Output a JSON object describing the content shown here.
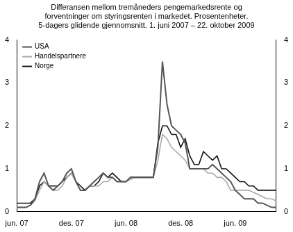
{
  "chart_data": {
    "type": "line",
    "title": [
      "Differansen mellom tremåneders pengemarkedsrente og",
      "forventninger om styringsrenten i markedet. Prosentenheter."
    ],
    "subtitle": "5-dagers glidende gjennomsnitt. 1. juni 2007 – 22. oktober 2009",
    "categories": [
      "jun. 07",
      null,
      null,
      null,
      null,
      null,
      null,
      null,
      null,
      null,
      null,
      null,
      "des. 07",
      null,
      null,
      null,
      null,
      null,
      null,
      null,
      null,
      null,
      null,
      null,
      "jun. 08",
      null,
      null,
      null,
      null,
      null,
      null,
      null,
      null,
      null,
      null,
      null,
      "des. 08",
      null,
      null,
      null,
      null,
      null,
      null,
      null,
      null,
      null,
      null,
      null,
      "jun. 09",
      null,
      null,
      null,
      null,
      null,
      null,
      null,
      null,
      null
    ],
    "series": [
      {
        "name": "USA",
        "color": "#555555",
        "values": [
          0.1,
          0.1,
          0.1,
          0.15,
          0.3,
          0.7,
          0.9,
          0.6,
          0.5,
          0.6,
          0.7,
          0.9,
          1.0,
          0.7,
          0.5,
          0.5,
          0.6,
          0.7,
          0.8,
          0.9,
          0.8,
          0.8,
          0.7,
          0.7,
          0.7,
          0.8,
          0.8,
          0.8,
          0.8,
          0.8,
          0.8,
          1.5,
          3.5,
          2.5,
          2.0,
          1.9,
          1.8,
          1.6,
          1.0,
          1.0,
          1.0,
          1.0,
          1.0,
          1.1,
          1.0,
          0.9,
          0.8,
          0.7,
          0.5,
          0.4,
          0.3,
          0.3,
          0.3,
          0.2,
          0.2,
          0.15,
          0.1,
          0.1
        ]
      },
      {
        "name": "Handelspartnere",
        "color": "#aaaaaa",
        "values": [
          0.1,
          0.1,
          0.1,
          0.15,
          0.25,
          0.5,
          0.7,
          0.6,
          0.5,
          0.5,
          0.6,
          0.8,
          0.9,
          0.7,
          0.5,
          0.5,
          0.6,
          0.6,
          0.6,
          0.7,
          0.7,
          0.8,
          0.7,
          0.7,
          0.7,
          0.75,
          0.8,
          0.8,
          0.8,
          0.8,
          0.8,
          1.2,
          1.8,
          1.7,
          1.5,
          1.4,
          1.3,
          1.2,
          1.0,
          1.0,
          1.0,
          1.0,
          0.9,
          0.9,
          0.8,
          0.8,
          0.7,
          0.5,
          0.5,
          0.5,
          0.5,
          0.5,
          0.45,
          0.4,
          0.35,
          0.3,
          0.3,
          0.25
        ]
      },
      {
        "name": "Norge",
        "color": "#111111",
        "values": [
          0.2,
          0.2,
          0.2,
          0.2,
          0.3,
          0.6,
          0.7,
          0.6,
          0.6,
          0.6,
          0.7,
          0.8,
          0.9,
          0.7,
          0.6,
          0.5,
          0.6,
          0.6,
          0.7,
          0.9,
          0.8,
          0.9,
          0.8,
          0.7,
          0.7,
          0.8,
          0.8,
          0.8,
          0.8,
          0.8,
          0.8,
          1.6,
          2.0,
          2.0,
          1.8,
          1.8,
          1.5,
          1.7,
          1.3,
          1.1,
          1.1,
          1.4,
          1.3,
          1.2,
          1.3,
          1.0,
          1.0,
          0.9,
          0.8,
          0.7,
          0.7,
          0.6,
          0.6,
          0.5,
          0.5,
          0.5,
          0.5,
          0.5
        ]
      }
    ],
    "ylim": [
      0,
      4
    ],
    "yticks": [
      0,
      1,
      2,
      3,
      4
    ],
    "y2lim": [
      0,
      4
    ],
    "y2ticks": [
      0,
      1,
      2,
      3,
      4
    ],
    "grid": false,
    "legend": "upper left"
  }
}
